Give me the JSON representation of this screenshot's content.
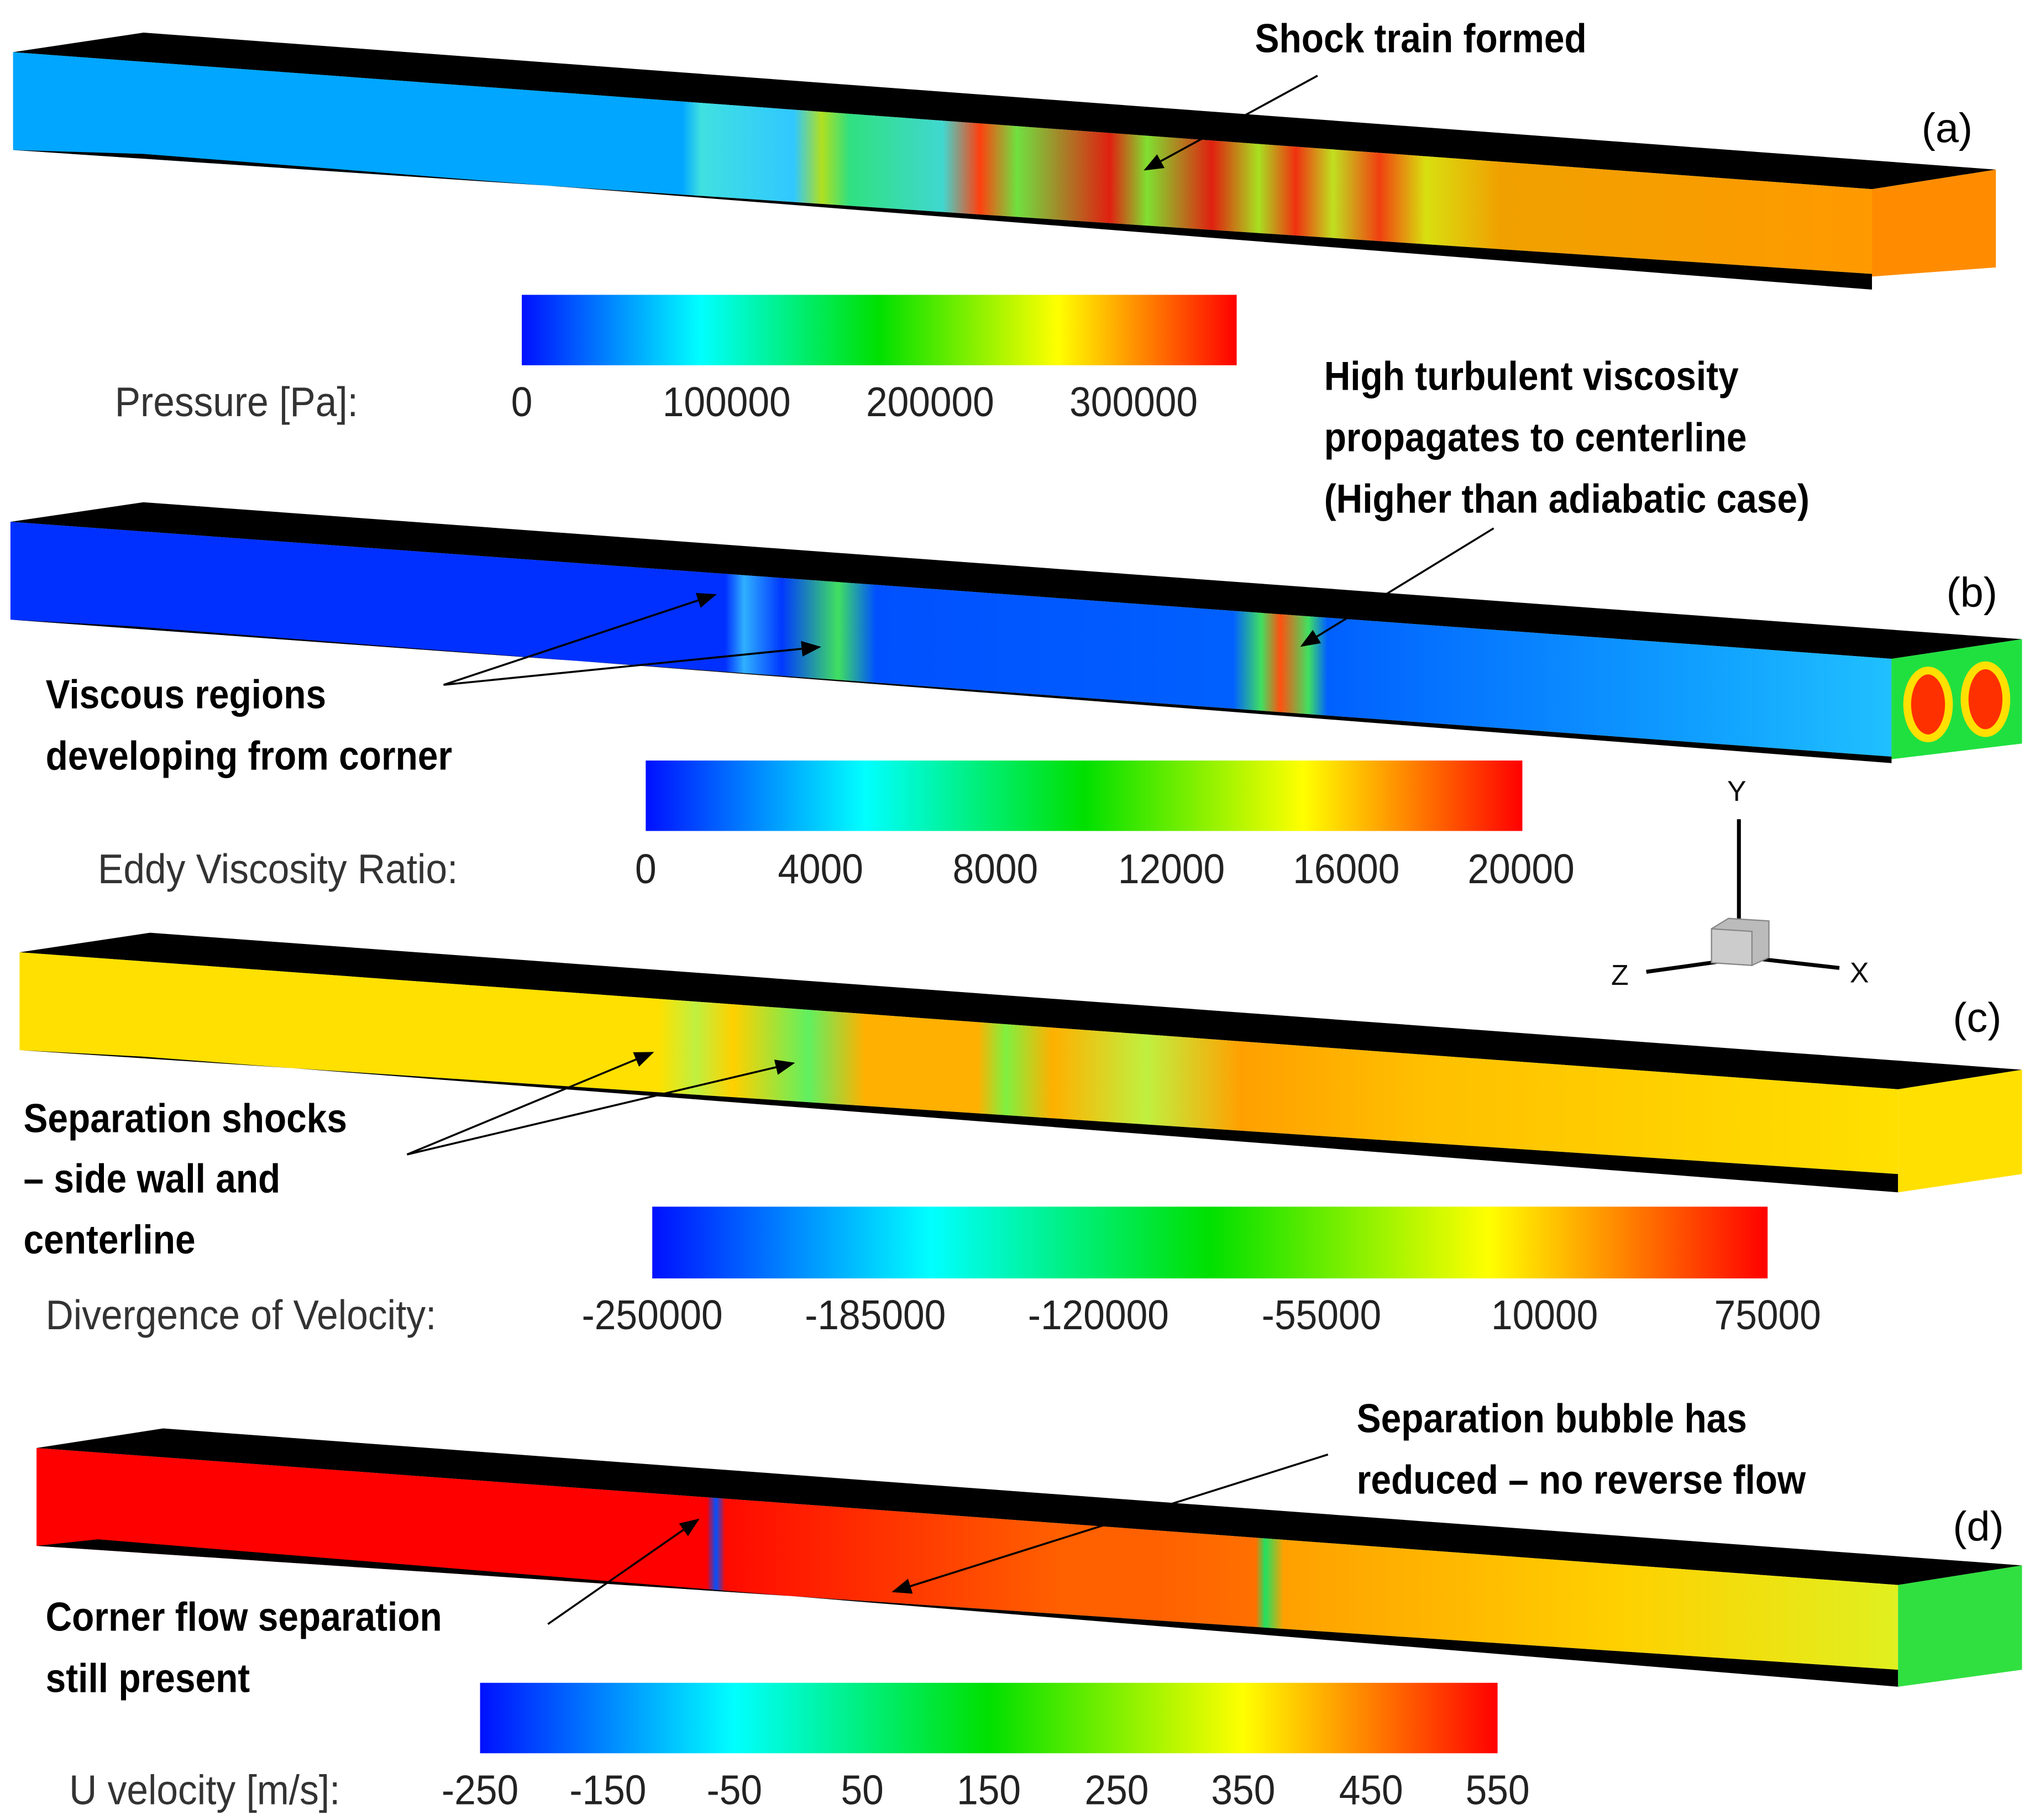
{
  "panels": [
    {
      "id": "(a)",
      "annotation": "Shock train formed",
      "colorbar": {
        "label": "Pressure [Pa]:",
        "ticks": [
          "0",
          "100000",
          "200000",
          "300000"
        ]
      }
    },
    {
      "id": "(b)",
      "annotations": [
        "High turbulent viscosity",
        "propagates to centerline",
        "(Higher than adiabatic case)",
        "Viscous regions",
        "developing from corner"
      ],
      "colorbar": {
        "label": "Eddy Viscosity Ratio:",
        "ticks": [
          "0",
          "4000",
          "8000",
          "12000",
          "16000",
          "20000"
        ]
      }
    },
    {
      "id": "(c)",
      "annotations": [
        "Separation shocks",
        "– side wall and",
        "centerline"
      ],
      "colorbar": {
        "label": "Divergence of Velocity:",
        "ticks": [
          "-250000",
          "-185000",
          "-120000",
          "-55000",
          "10000",
          "75000"
        ]
      }
    },
    {
      "id": "(d)",
      "annotations": [
        "Separation bubble has",
        "reduced – no reverse flow",
        "Corner flow separation",
        "still present"
      ],
      "colorbar": {
        "label": "U velocity [m/s]:",
        "ticks": [
          "-250",
          "-150",
          "-50",
          "50",
          "150",
          "250",
          "350",
          "450",
          "550"
        ]
      }
    }
  ],
  "axes": {
    "y": "Y",
    "z": "Z",
    "x": "X"
  },
  "colors": {
    "jet": [
      "#0000ff",
      "#00ffff",
      "#00ff00",
      "#ffff00",
      "#ff0000"
    ]
  }
}
